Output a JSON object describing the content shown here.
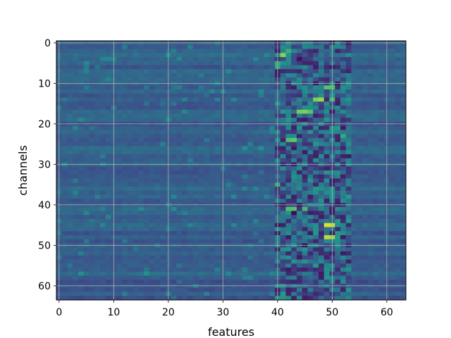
{
  "chart_data": {
    "type": "heatmap",
    "xlabel": "features",
    "ylabel": "channels",
    "x_ticks": [
      "0",
      "10",
      "20",
      "30",
      "40",
      "50",
      "60"
    ],
    "y_ticks": [
      "0",
      "10",
      "20",
      "30",
      "40",
      "50",
      "60"
    ],
    "x_range": [
      0,
      63
    ],
    "y_range": [
      0,
      63
    ],
    "y_axis_inverted": true,
    "grid": true,
    "colormap": "viridis",
    "colormap_stops": [
      "#440154",
      "#3b528b",
      "#21918c",
      "#5ec962",
      "#fde725"
    ],
    "n_rows": 64,
    "n_cols": 64,
    "background_level": 0.3,
    "active_band_columns": [
      40,
      53
    ],
    "hot_cells": [
      {
        "row": 2,
        "col": 42,
        "value": 0.62
      },
      {
        "row": 3,
        "col": 41,
        "value": 0.82
      },
      {
        "row": 5,
        "col": 40,
        "value": 0.6
      },
      {
        "row": 6,
        "col": 40,
        "value": 0.58
      },
      {
        "row": 11,
        "col": 49,
        "value": 0.72
      },
      {
        "row": 11,
        "col": 50,
        "value": 0.7
      },
      {
        "row": 14,
        "col": 47,
        "value": 0.8
      },
      {
        "row": 14,
        "col": 48,
        "value": 0.85
      },
      {
        "row": 14,
        "col": 50,
        "value": 0.68
      },
      {
        "row": 17,
        "col": 44,
        "value": 0.78
      },
      {
        "row": 17,
        "col": 45,
        "value": 0.8
      },
      {
        "row": 17,
        "col": 46,
        "value": 0.72
      },
      {
        "row": 24,
        "col": 42,
        "value": 0.7
      },
      {
        "row": 24,
        "col": 43,
        "value": 0.75
      },
      {
        "row": 35,
        "col": 40,
        "value": 0.6
      },
      {
        "row": 41,
        "col": 42,
        "value": 0.7
      },
      {
        "row": 41,
        "col": 43,
        "value": 0.72
      },
      {
        "row": 41,
        "col": 45,
        "value": 0.68
      },
      {
        "row": 45,
        "col": 49,
        "value": 0.95
      },
      {
        "row": 45,
        "col": 50,
        "value": 0.92
      },
      {
        "row": 48,
        "col": 49,
        "value": 0.9
      },
      {
        "row": 48,
        "col": 50,
        "value": 0.86
      },
      {
        "row": 23,
        "col": 52,
        "value": 0.6
      },
      {
        "row": 42,
        "col": 43,
        "value": 0.02
      },
      {
        "row": 50,
        "col": 45,
        "value": 0.05
      },
      {
        "row": 4,
        "col": 44,
        "value": 0.05
      },
      {
        "row": 31,
        "col": 49,
        "value": 0.1
      }
    ]
  }
}
